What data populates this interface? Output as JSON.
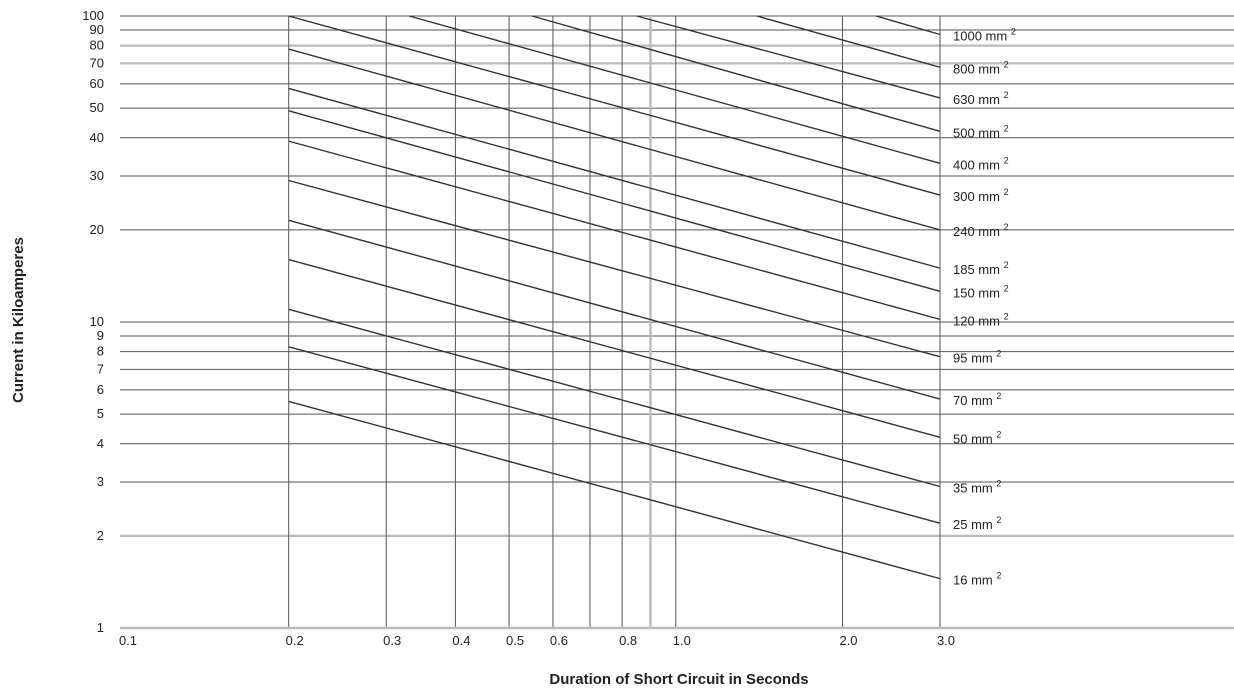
{
  "chart_data": {
    "type": "line",
    "xlabel": "Duration of Short Circuit in Seconds",
    "ylabel": "Current in Kiloamperes",
    "xscale": "log",
    "yscale": "log",
    "xlim": [
      0.1,
      3.0
    ],
    "ylim": [
      1,
      100
    ],
    "grid": true,
    "x_ticks": [
      {
        "v": 0.1,
        "label": "0.1"
      },
      {
        "v": 0.2,
        "label": "0.2"
      },
      {
        "v": 0.3,
        "label": "0.3"
      },
      {
        "v": 0.4,
        "label": "0.4"
      },
      {
        "v": 0.5,
        "label": "0.5"
      },
      {
        "v": 0.6,
        "label": "0.6"
      },
      {
        "v": 0.8,
        "label": "0.8"
      },
      {
        "v": 1.0,
        "label": "1.0"
      },
      {
        "v": 2.0,
        "label": "2.0"
      },
      {
        "v": 3.0,
        "label": "3.0"
      }
    ],
    "x_grid": [
      0.2,
      0.3,
      0.4,
      0.5,
      0.6,
      0.7,
      0.8,
      0.9,
      1.0,
      2.0,
      3.0
    ],
    "y_ticks": [
      {
        "v": 1,
        "label": "1"
      },
      {
        "v": 2,
        "label": "2"
      },
      {
        "v": 3,
        "label": "3"
      },
      {
        "v": 4,
        "label": "4"
      },
      {
        "v": 5,
        "label": "5"
      },
      {
        "v": 6,
        "label": "6"
      },
      {
        "v": 7,
        "label": "7"
      },
      {
        "v": 8,
        "label": "8"
      },
      {
        "v": 9,
        "label": "9"
      },
      {
        "v": 10,
        "label": "10"
      },
      {
        "v": 20,
        "label": "20"
      },
      {
        "v": 30,
        "label": "30"
      },
      {
        "v": 40,
        "label": "40"
      },
      {
        "v": 50,
        "label": "50"
      },
      {
        "v": 60,
        "label": "60"
      },
      {
        "v": 70,
        "label": "70"
      },
      {
        "v": 80,
        "label": "80"
      },
      {
        "v": 90,
        "label": "90"
      },
      {
        "v": 100,
        "label": "100"
      }
    ],
    "series": [
      {
        "name": "1000 mm",
        "x": [
          2.3,
          3.0
        ],
        "y": [
          100,
          87
        ]
      },
      {
        "name": "800 mm",
        "x": [
          1.4,
          3.0
        ],
        "y": [
          100,
          68
        ]
      },
      {
        "name": "630 mm",
        "x": [
          0.85,
          3.0
        ],
        "y": [
          100,
          54
        ]
      },
      {
        "name": "500 mm",
        "x": [
          0.55,
          3.0
        ],
        "y": [
          100,
          42
        ]
      },
      {
        "name": "400 mm",
        "x": [
          0.33,
          3.0
        ],
        "y": [
          100,
          33
        ]
      },
      {
        "name": "300 mm",
        "x": [
          0.2,
          3.0
        ],
        "y": [
          100,
          26
        ]
      },
      {
        "name": "240 mm",
        "x": [
          0.2,
          3.0
        ],
        "y": [
          78,
          20
        ]
      },
      {
        "name": "185 mm",
        "x": [
          0.2,
          3.0
        ],
        "y": [
          58,
          15
        ]
      },
      {
        "name": "150 mm",
        "x": [
          0.2,
          3.0
        ],
        "y": [
          49,
          12.6
        ]
      },
      {
        "name": "120 mm",
        "x": [
          0.2,
          3.0
        ],
        "y": [
          39,
          10.2
        ]
      },
      {
        "name": "95 mm",
        "x": [
          0.2,
          3.0
        ],
        "y": [
          29,
          7.7
        ]
      },
      {
        "name": "70 mm",
        "x": [
          0.2,
          3.0
        ],
        "y": [
          21.5,
          5.6
        ]
      },
      {
        "name": "50 mm",
        "x": [
          0.2,
          3.0
        ],
        "y": [
          16,
          4.2
        ]
      },
      {
        "name": "35 mm",
        "x": [
          0.2,
          3.0
        ],
        "y": [
          11,
          2.9
        ]
      },
      {
        "name": "25 mm",
        "x": [
          0.2,
          3.0
        ],
        "y": [
          8.3,
          2.2
        ]
      },
      {
        "name": "16 mm",
        "x": [
          0.2,
          3.0
        ],
        "y": [
          5.5,
          1.45
        ]
      }
    ],
    "series_label_superscript": "2",
    "colors": {
      "line": "#333333",
      "grid": "#555555",
      "grid_light": "#bbbbbb",
      "text": "#222222"
    }
  }
}
